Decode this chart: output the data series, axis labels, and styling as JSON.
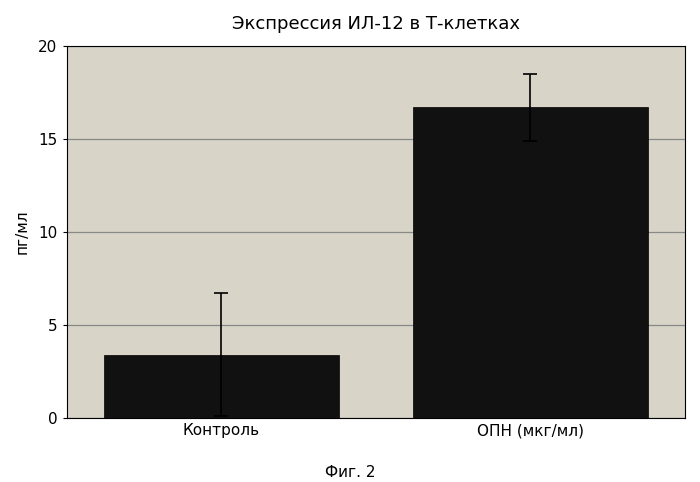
{
  "title": "Экспрессия ИЛ-12 в Т-клетках",
  "ylabel": "пг/мл",
  "caption": "Фиг. 2",
  "categories": [
    "Контроль",
    "ОПН (мкг/мл)"
  ],
  "values": [
    3.4,
    16.7
  ],
  "errors": [
    3.3,
    1.8
  ],
  "bar_color": "#111111",
  "bar_width": 0.38,
  "ylim": [
    0,
    20
  ],
  "yticks": [
    0,
    5,
    10,
    15,
    20
  ],
  "plot_bg_color": "#d8d4c8",
  "outer_bg_color": "#ffffff",
  "title_fontsize": 13,
  "label_fontsize": 11,
  "tick_fontsize": 11,
  "caption_fontsize": 11,
  "grid_color": "#888888",
  "grid_linewidth": 0.9,
  "x_positions": [
    0.25,
    0.75
  ],
  "xlim": [
    0,
    1
  ]
}
